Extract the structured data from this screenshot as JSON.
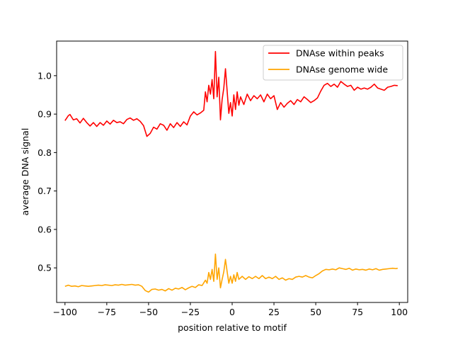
{
  "chart_data": {
    "type": "line",
    "title": "",
    "xlabel": "position relative to motif",
    "ylabel": "average DNA signal",
    "xlim": [
      -105,
      105
    ],
    "ylim": [
      0.41,
      1.09
    ],
    "xticks": [
      -100,
      -75,
      -50,
      -25,
      0,
      25,
      50,
      75,
      100
    ],
    "xtick_labels": [
      "−100",
      "−75",
      "−50",
      "−25",
      "0",
      "25",
      "50",
      "75",
      "100"
    ],
    "yticks": [
      0.5,
      0.6,
      0.7,
      0.8,
      0.9,
      1.0
    ],
    "ytick_labels": [
      "0.5",
      "0.6",
      "0.7",
      "0.8",
      "0.9",
      "1.0"
    ],
    "grid": false,
    "legend_position": "top-right",
    "series": [
      {
        "name": "DNAse within peaks",
        "color": "#ff0000",
        "points": [
          [
            -100,
            0.883
          ],
          [
            -98,
            0.896
          ],
          [
            -97,
            0.899
          ],
          [
            -95,
            0.885
          ],
          [
            -93,
            0.888
          ],
          [
            -91,
            0.877
          ],
          [
            -89,
            0.889
          ],
          [
            -87,
            0.878
          ],
          [
            -85,
            0.869
          ],
          [
            -83,
            0.878
          ],
          [
            -81,
            0.868
          ],
          [
            -79,
            0.878
          ],
          [
            -77,
            0.871
          ],
          [
            -75,
            0.882
          ],
          [
            -73,
            0.874
          ],
          [
            -71,
            0.884
          ],
          [
            -69,
            0.878
          ],
          [
            -67,
            0.88
          ],
          [
            -65,
            0.875
          ],
          [
            -63,
            0.886
          ],
          [
            -61,
            0.89
          ],
          [
            -59,
            0.884
          ],
          [
            -57,
            0.888
          ],
          [
            -55,
            0.881
          ],
          [
            -53,
            0.87
          ],
          [
            -51,
            0.842
          ],
          [
            -49,
            0.85
          ],
          [
            -47,
            0.866
          ],
          [
            -45,
            0.861
          ],
          [
            -43,
            0.875
          ],
          [
            -41,
            0.871
          ],
          [
            -39,
            0.858
          ],
          [
            -37,
            0.875
          ],
          [
            -35,
            0.865
          ],
          [
            -33,
            0.878
          ],
          [
            -31,
            0.868
          ],
          [
            -29,
            0.88
          ],
          [
            -27,
            0.872
          ],
          [
            -25,
            0.895
          ],
          [
            -23,
            0.906
          ],
          [
            -21,
            0.898
          ],
          [
            -19,
            0.903
          ],
          [
            -17,
            0.91
          ],
          [
            -16,
            0.958
          ],
          [
            -15,
            0.932
          ],
          [
            -14,
            0.975
          ],
          [
            -13,
            0.952
          ],
          [
            -12,
            0.99
          ],
          [
            -11,
            0.94
          ],
          [
            -10,
            1.063
          ],
          [
            -9,
            0.945
          ],
          [
            -8,
            0.996
          ],
          [
            -7,
            0.885
          ],
          [
            -6,
            0.938
          ],
          [
            -5,
            0.968
          ],
          [
            -4,
            1.018
          ],
          [
            -3,
            0.96
          ],
          [
            -2,
            0.902
          ],
          [
            -1,
            0.93
          ],
          [
            0,
            0.895
          ],
          [
            1,
            0.95
          ],
          [
            2,
            0.912
          ],
          [
            3,
            0.958
          ],
          [
            4,
            0.923
          ],
          [
            5,
            0.945
          ],
          [
            7,
            0.925
          ],
          [
            9,
            0.952
          ],
          [
            11,
            0.935
          ],
          [
            13,
            0.948
          ],
          [
            15,
            0.94
          ],
          [
            17,
            0.95
          ],
          [
            19,
            0.932
          ],
          [
            21,
            0.952
          ],
          [
            23,
            0.94
          ],
          [
            25,
            0.948
          ],
          [
            27,
            0.912
          ],
          [
            29,
            0.93
          ],
          [
            31,
            0.918
          ],
          [
            33,
            0.928
          ],
          [
            35,
            0.935
          ],
          [
            37,
            0.925
          ],
          [
            39,
            0.938
          ],
          [
            41,
            0.932
          ],
          [
            43,
            0.945
          ],
          [
            45,
            0.938
          ],
          [
            47,
            0.93
          ],
          [
            49,
            0.935
          ],
          [
            51,
            0.942
          ],
          [
            53,
            0.96
          ],
          [
            55,
            0.975
          ],
          [
            57,
            0.98
          ],
          [
            59,
            0.972
          ],
          [
            61,
            0.978
          ],
          [
            63,
            0.97
          ],
          [
            65,
            0.985
          ],
          [
            67,
            0.978
          ],
          [
            69,
            0.972
          ],
          [
            71,
            0.975
          ],
          [
            73,
            0.962
          ],
          [
            75,
            0.97
          ],
          [
            77,
            0.965
          ],
          [
            79,
            0.968
          ],
          [
            81,
            0.965
          ],
          [
            83,
            0.97
          ],
          [
            85,
            0.978
          ],
          [
            87,
            0.968
          ],
          [
            89,
            0.965
          ],
          [
            91,
            0.962
          ],
          [
            93,
            0.97
          ],
          [
            95,
            0.972
          ],
          [
            97,
            0.975
          ],
          [
            99,
            0.974
          ]
        ]
      },
      {
        "name": "DNAse genome wide",
        "color": "#ffa500",
        "points": [
          [
            -100,
            0.452
          ],
          [
            -98,
            0.455
          ],
          [
            -96,
            0.452
          ],
          [
            -94,
            0.453
          ],
          [
            -92,
            0.451
          ],
          [
            -90,
            0.454
          ],
          [
            -88,
            0.453
          ],
          [
            -86,
            0.452
          ],
          [
            -84,
            0.453
          ],
          [
            -82,
            0.454
          ],
          [
            -80,
            0.455
          ],
          [
            -78,
            0.454
          ],
          [
            -76,
            0.456
          ],
          [
            -74,
            0.455
          ],
          [
            -72,
            0.454
          ],
          [
            -70,
            0.456
          ],
          [
            -68,
            0.455
          ],
          [
            -66,
            0.457
          ],
          [
            -64,
            0.455
          ],
          [
            -62,
            0.456
          ],
          [
            -60,
            0.457
          ],
          [
            -58,
            0.455
          ],
          [
            -56,
            0.456
          ],
          [
            -54,
            0.452
          ],
          [
            -52,
            0.441
          ],
          [
            -50,
            0.437
          ],
          [
            -48,
            0.444
          ],
          [
            -46,
            0.445
          ],
          [
            -44,
            0.442
          ],
          [
            -42,
            0.444
          ],
          [
            -40,
            0.44
          ],
          [
            -38,
            0.446
          ],
          [
            -36,
            0.442
          ],
          [
            -34,
            0.447
          ],
          [
            -32,
            0.445
          ],
          [
            -30,
            0.449
          ],
          [
            -28,
            0.443
          ],
          [
            -26,
            0.448
          ],
          [
            -24,
            0.452
          ],
          [
            -22,
            0.449
          ],
          [
            -20,
            0.456
          ],
          [
            -18,
            0.454
          ],
          [
            -16,
            0.468
          ],
          [
            -15,
            0.46
          ],
          [
            -14,
            0.488
          ],
          [
            -13,
            0.47
          ],
          [
            -12,
            0.496
          ],
          [
            -11,
            0.465
          ],
          [
            -10,
            0.536
          ],
          [
            -9,
            0.47
          ],
          [
            -8,
            0.5
          ],
          [
            -7,
            0.448
          ],
          [
            -6,
            0.47
          ],
          [
            -5,
            0.49
          ],
          [
            -4,
            0.522
          ],
          [
            -3,
            0.49
          ],
          [
            -2,
            0.46
          ],
          [
            -1,
            0.478
          ],
          [
            0,
            0.46
          ],
          [
            1,
            0.482
          ],
          [
            2,
            0.465
          ],
          [
            3,
            0.488
          ],
          [
            4,
            0.47
          ],
          [
            6,
            0.478
          ],
          [
            8,
            0.47
          ],
          [
            10,
            0.477
          ],
          [
            12,
            0.472
          ],
          [
            14,
            0.478
          ],
          [
            16,
            0.472
          ],
          [
            18,
            0.48
          ],
          [
            20,
            0.472
          ],
          [
            22,
            0.476
          ],
          [
            24,
            0.472
          ],
          [
            26,
            0.478
          ],
          [
            28,
            0.47
          ],
          [
            30,
            0.474
          ],
          [
            32,
            0.468
          ],
          [
            34,
            0.472
          ],
          [
            36,
            0.47
          ],
          [
            38,
            0.476
          ],
          [
            40,
            0.478
          ],
          [
            42,
            0.476
          ],
          [
            44,
            0.48
          ],
          [
            46,
            0.476
          ],
          [
            48,
            0.474
          ],
          [
            50,
            0.48
          ],
          [
            52,
            0.485
          ],
          [
            54,
            0.492
          ],
          [
            56,
            0.496
          ],
          [
            58,
            0.495
          ],
          [
            60,
            0.497
          ],
          [
            62,
            0.495
          ],
          [
            64,
            0.5
          ],
          [
            66,
            0.498
          ],
          [
            68,
            0.496
          ],
          [
            70,
            0.499
          ],
          [
            72,
            0.494
          ],
          [
            74,
            0.497
          ],
          [
            76,
            0.495
          ],
          [
            78,
            0.496
          ],
          [
            80,
            0.494
          ],
          [
            82,
            0.497
          ],
          [
            84,
            0.495
          ],
          [
            86,
            0.498
          ],
          [
            88,
            0.494
          ],
          [
            90,
            0.496
          ],
          [
            92,
            0.497
          ],
          [
            94,
            0.498
          ],
          [
            96,
            0.499
          ],
          [
            98,
            0.498
          ],
          [
            99,
            0.499
          ]
        ]
      }
    ]
  }
}
